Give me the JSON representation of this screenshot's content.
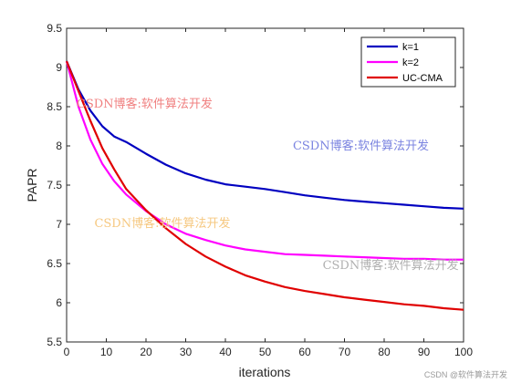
{
  "chart_data": {
    "type": "line",
    "xlabel": "iterations",
    "ylabel": "PAPR",
    "xlim": [
      0,
      100
    ],
    "ylim": [
      5.5,
      9.5
    ],
    "xticks": [
      0,
      10,
      20,
      30,
      40,
      50,
      60,
      70,
      80,
      90,
      100
    ],
    "yticks": [
      5.5,
      6,
      6.5,
      7,
      7.5,
      8,
      8.5,
      9,
      9.5
    ],
    "grid": false,
    "legend_position": "top-right",
    "series": [
      {
        "name": "k=1",
        "color": "#0000c0",
        "x": [
          0,
          3,
          6,
          9,
          12,
          15,
          20,
          25,
          30,
          35,
          40,
          45,
          50,
          55,
          60,
          65,
          70,
          75,
          80,
          85,
          90,
          95,
          100
        ],
        "y": [
          9.08,
          8.72,
          8.45,
          8.25,
          8.12,
          8.05,
          7.9,
          7.76,
          7.65,
          7.57,
          7.51,
          7.48,
          7.45,
          7.41,
          7.37,
          7.34,
          7.31,
          7.29,
          7.27,
          7.25,
          7.23,
          7.21,
          7.2
        ]
      },
      {
        "name": "k=2",
        "color": "#ff00ff",
        "x": [
          0,
          3,
          6,
          9,
          12,
          15,
          20,
          25,
          30,
          35,
          40,
          45,
          50,
          55,
          60,
          65,
          70,
          75,
          80,
          85,
          90,
          95,
          100
        ],
        "y": [
          9.08,
          8.5,
          8.08,
          7.77,
          7.55,
          7.38,
          7.17,
          7.0,
          6.88,
          6.8,
          6.73,
          6.68,
          6.65,
          6.62,
          6.61,
          6.6,
          6.59,
          6.58,
          6.57,
          6.56,
          6.56,
          6.55,
          6.55
        ]
      },
      {
        "name": "UC-CMA",
        "color": "#e00000",
        "x": [
          0,
          3,
          6,
          9,
          12,
          15,
          20,
          25,
          30,
          35,
          40,
          45,
          50,
          55,
          60,
          65,
          70,
          75,
          80,
          85,
          90,
          95,
          100
        ],
        "y": [
          9.08,
          8.7,
          8.32,
          7.97,
          7.7,
          7.45,
          7.18,
          6.95,
          6.75,
          6.59,
          6.46,
          6.35,
          6.27,
          6.2,
          6.15,
          6.11,
          6.07,
          6.04,
          6.01,
          5.98,
          5.96,
          5.93,
          5.91
        ]
      }
    ]
  },
  "watermarks": [
    {
      "text": "CSDN博客:软件算法开发",
      "color": "#f08080",
      "x": 2.5,
      "y": 8.57
    },
    {
      "text": "CSDN博客:软件算法开发",
      "color": "#7b84e0",
      "x": 57,
      "y": 8.03
    },
    {
      "text": "CSDN博客:软件算法开发",
      "color": "#f6c880",
      "x": 7,
      "y": 7.05
    },
    {
      "text": "CSDN博客:软件算法开发",
      "color": "#b0b0b0",
      "x": 64.5,
      "y": 6.51
    }
  ],
  "corner_watermark": "CSDN @软件算法开发"
}
